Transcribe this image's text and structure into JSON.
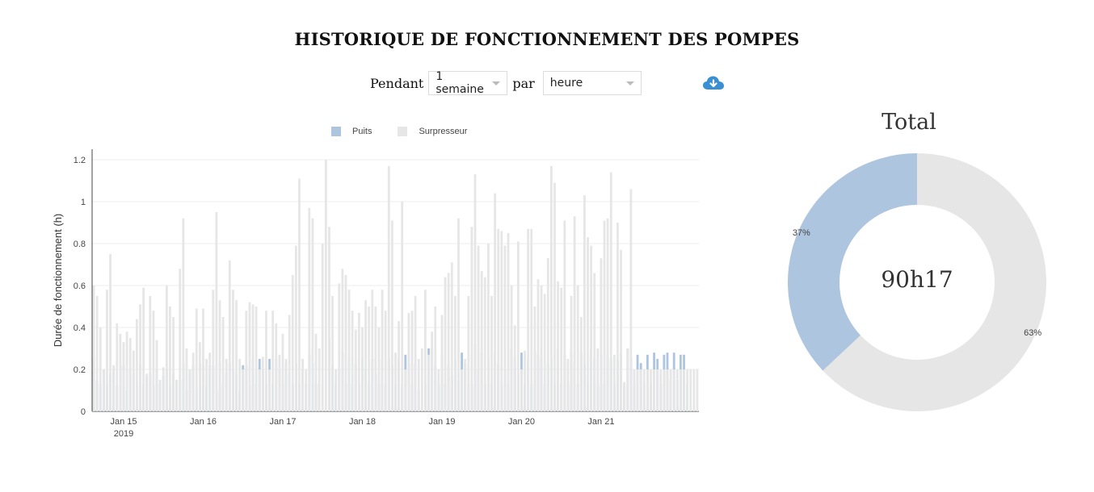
{
  "header": {
    "title": "HISTORIQUE DE FONCTIONNEMENT DES POMPES"
  },
  "controls": {
    "period_label": "Pendant",
    "period_value": "1 semaine",
    "unit_label": "par",
    "unit_value": "heure",
    "download_icon": "cloud-download-icon"
  },
  "colors": {
    "puits": "#aec5df",
    "surpresseur": "#e6e6e6",
    "download": "#3a8fd3"
  },
  "chart_data": [
    {
      "type": "bar",
      "stacked": false,
      "title": "",
      "xlabel": "",
      "ylabel": "Durée de fonctionnement (h)",
      "ylim": [
        0,
        1.25
      ],
      "yticks": [
        0,
        0.2,
        0.4,
        0.6,
        0.8,
        1,
        1.2
      ],
      "ytick_labels": [
        "0",
        "0.2",
        "0.4",
        "0.6",
        "0.8",
        "1",
        "1.2"
      ],
      "grid": true,
      "legend_position": "top",
      "x_tick_labels": [
        {
          "label": "Jan 15",
          "sub": "2019",
          "index": 9
        },
        {
          "label": "Jan 16",
          "sub": "",
          "index": 33
        },
        {
          "label": "Jan 17",
          "sub": "",
          "index": 57
        },
        {
          "label": "Jan 18",
          "sub": "",
          "index": 81
        },
        {
          "label": "Jan 19",
          "sub": "",
          "index": 105
        },
        {
          "label": "Jan 20",
          "sub": "",
          "index": 129
        },
        {
          "label": "Jan 21",
          "sub": "",
          "index": 153
        }
      ],
      "series": [
        {
          "name": "Puits",
          "values": [
            0.25,
            0.15,
            0.13,
            0.2,
            0.13,
            0.18,
            0.2,
            0.12,
            0.22,
            0.22,
            0.1,
            0.2,
            0.18,
            0.12,
            0.22,
            0.13,
            0.17,
            0.18,
            0.12,
            0.2,
            0.13,
            0.17,
            0.2,
            0.12,
            0.18,
            0.15,
            0.15,
            0.23,
            0.1,
            0.2,
            0.22,
            0.1,
            0.23,
            0.22,
            0.12,
            0.22,
            0.22,
            0.1,
            0.23,
            0.13,
            0.18,
            0.23,
            0.2,
            0.18,
            0.1,
            0.22,
            0.22,
            0.12,
            0.25,
            0.13,
            0.25,
            0.2,
            0.13,
            0.25,
            0.13,
            0.25,
            0.2,
            0.13,
            0.23,
            0.18,
            0.13,
            0.23,
            0.13,
            0.2,
            0.13,
            0.27,
            0.23,
            0.13,
            0.13,
            0.0,
            0.0,
            0.35,
            0.22,
            0.13,
            0.2,
            0.28,
            0.13,
            0.25,
            0.13,
            0.23,
            0.13,
            0.25,
            0.2,
            0.13,
            0.25,
            0.18,
            0.13,
            0.25,
            0.13,
            0.25,
            0.22,
            0.13,
            0.25,
            0.13,
            0.27,
            0.23,
            0.13,
            0.23,
            0.1,
            0.0,
            0.13,
            0.3,
            0.3,
            0.22,
            0.13,
            0.27,
            0.13,
            0.22,
            0.17,
            0.25,
            0.15,
            0.28,
            0.23,
            0.13,
            0.13,
            0.32,
            0.2,
            0.28,
            0.13,
            0.25,
            0.13,
            0.28,
            0.23,
            0.13,
            0.2,
            0.13,
            0.3,
            0.25,
            0.18,
            0.28,
            0.13,
            0.25,
            0.13,
            0.28,
            0.27,
            0.25,
            0.13,
            0.23,
            0.25,
            0.13,
            0.3,
            0.13,
            0.27,
            0.13,
            0.28,
            0.23,
            0.13,
            0.28,
            0.23,
            0.13,
            0.3,
            0.25,
            0.13,
            0.27,
            0.13,
            0.27,
            0.25,
            0.13,
            0.25,
            0.28,
            0.13,
            0.3,
            0.25,
            0.13,
            0.27,
            0.23,
            0.13,
            0.27,
            0.13,
            0.28,
            0.25,
            0.13,
            0.27,
            0.28,
            0.15,
            0.28,
            0.15,
            0.27,
            0.27,
            0.13
          ],
          "color": "#aec5df"
        },
        {
          "name": "Surpresseur",
          "values": [
            0.6,
            0.55,
            0.4,
            0.2,
            0.58,
            0.75,
            0.22,
            0.42,
            0.37,
            0.33,
            0.38,
            0.35,
            0.29,
            0.44,
            0.51,
            0.59,
            0.18,
            0.55,
            0.48,
            0.34,
            0.15,
            0.21,
            0.6,
            0.5,
            0.45,
            0.15,
            0.68,
            0.92,
            0.3,
            0.2,
            0.28,
            0.49,
            0.33,
            0.49,
            0.25,
            0.28,
            0.58,
            0.95,
            0.53,
            0.45,
            0.25,
            0.72,
            0.58,
            0.53,
            0.25,
            0.2,
            0.48,
            0.52,
            0.51,
            0.5,
            0.2,
            0.26,
            0.48,
            0.2,
            0.48,
            0.42,
            0.27,
            0.37,
            0.25,
            0.46,
            0.65,
            0.79,
            1.11,
            0.25,
            0.2,
            0.97,
            0.92,
            0.37,
            0.3,
            0.8,
            1.2,
            0.88,
            0.55,
            0.2,
            0.61,
            0.68,
            0.65,
            0.58,
            0.48,
            0.39,
            0.47,
            0.4,
            0.53,
            0.5,
            0.58,
            0.5,
            0.4,
            0.58,
            0.48,
            1.17,
            0.91,
            0.28,
            0.43,
            1.0,
            0.2,
            0.47,
            0.48,
            0.55,
            0.25,
            0.3,
            0.58,
            0.27,
            0.38,
            0.5,
            0.2,
            0.46,
            0.64,
            0.66,
            0.71,
            0.55,
            0.92,
            0.2,
            0.25,
            0.55,
            0.88,
            1.13,
            0.79,
            0.67,
            0.64,
            0.8,
            0.55,
            1.04,
            0.87,
            0.86,
            0.79,
            0.85,
            0.6,
            0.41,
            0.81,
            0.2,
            0.29,
            0.87,
            0.87,
            0.5,
            0.63,
            0.6,
            0.56,
            0.73,
            1.17,
            1.09,
            0.62,
            0.59,
            0.91,
            0.25,
            0.55,
            0.93,
            0.6,
            0.45,
            1.03,
            0.83,
            0.79,
            0.66,
            0.3,
            0.73,
            0.91,
            0.92,
            1.14,
            0.27,
            0.9,
            0.77,
            0.14,
            0.3,
            1.06,
            0.2,
            0.2,
            0.2,
            0.2,
            0.2,
            0.2,
            0.2,
            0.2,
            0.2,
            0.2,
            0.2,
            0.2,
            0.2,
            0.2,
            0.2,
            0.2,
            0.2,
            0.2,
            0.2,
            0.2
          ],
          "color": "#e6e6e6"
        }
      ]
    },
    {
      "type": "pie",
      "title": "Total",
      "center_label": "90h17",
      "hole": 0.6,
      "slices": [
        {
          "name": "Puits",
          "value": 37,
          "label": "37%",
          "color": "#aec5df"
        },
        {
          "name": "Surpresseur",
          "value": 63,
          "label": "63%",
          "color": "#e6e6e6"
        }
      ]
    }
  ]
}
